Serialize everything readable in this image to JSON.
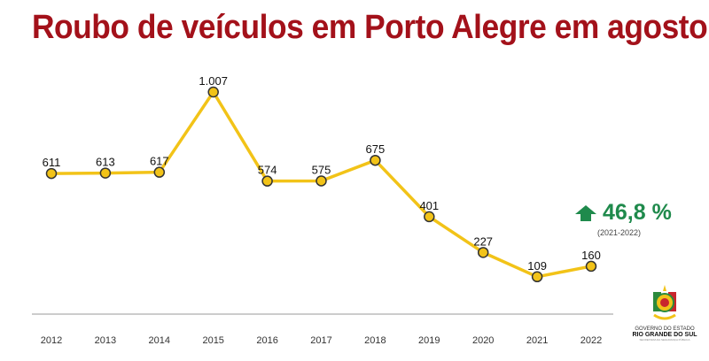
{
  "chart_data": {
    "type": "line",
    "title": "Roubo de veículos em Porto Alegre em agosto",
    "categories": [
      "2012",
      "2013",
      "2014",
      "2015",
      "2016",
      "2017",
      "2018",
      "2019",
      "2020",
      "2021",
      "2022"
    ],
    "values": [
      611,
      613,
      617,
      1007,
      574,
      575,
      675,
      401,
      227,
      109,
      160
    ],
    "value_labels": [
      "611",
      "613",
      "617",
      "1.007",
      "574",
      "575",
      "675",
      "401",
      "227",
      "109",
      "160"
    ],
    "xlabel": "",
    "ylabel": "",
    "grid": false,
    "line_color": "#f2c318",
    "annotation": {
      "change": "46,8 %",
      "period": "(2021-2022)",
      "direction": "up",
      "color": "#1f8a4c"
    }
  },
  "logo": {
    "line1": "GOVERNO DO ESTADO",
    "line2": "RIO GRANDE DO SUL",
    "line3": "SECRETARIA DA SEGURANÇA PÚBLICA"
  }
}
